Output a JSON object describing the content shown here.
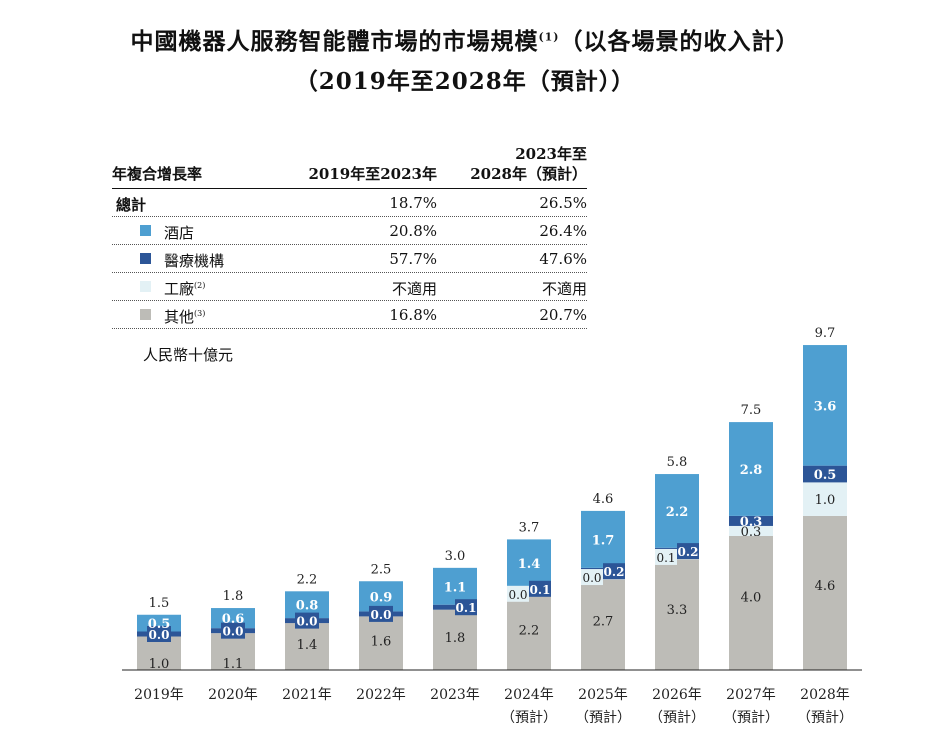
{
  "title": {
    "line1_main": "中國機器人服務智能體市場的市場規模",
    "line1_note": "(1)",
    "line1_tail": "（以各場景的收入計）",
    "line2": "（2019年至2028年（預計））"
  },
  "cagr_table": {
    "header_label": "年複合增長率",
    "col1_header": "2019年至2023年",
    "col2_header_line1": "2023年至",
    "col2_header_line2": "2028年（預計）",
    "rows": [
      {
        "label": "總計",
        "note": "",
        "v1": "18.7%",
        "v2": "26.5%"
      },
      {
        "label": "酒店",
        "note": "",
        "v1": "20.8%",
        "v2": "26.4%"
      },
      {
        "label": "醫療機構",
        "note": "",
        "v1": "57.7%",
        "v2": "47.6%"
      },
      {
        "label": "工廠",
        "note": "(2)",
        "v1": "不適用",
        "v2": "不適用"
      },
      {
        "label": "其他",
        "note": "(3)",
        "v1": "16.8%",
        "v2": "20.7%"
      }
    ]
  },
  "unit_label": "人民幣十億元",
  "colors": {
    "hotel": "#4e9fd1",
    "medical": "#2c5597",
    "factory": "#e3f1f5",
    "other": "#bdbcb7"
  },
  "chart_data": {
    "type": "bar",
    "stacked": true,
    "categories": [
      "2019年",
      "2020年",
      "2021年",
      "2022年",
      "2023年",
      "2024年",
      "2025年",
      "2026年",
      "2027年",
      "2028年"
    ],
    "category_sublabels": [
      "",
      "",
      "",
      "",
      "",
      "（預計）",
      "（預計）",
      "（預計）",
      "（預計）",
      "（預計）"
    ],
    "series": [
      {
        "name": "其他",
        "key": "other",
        "values": [
          1.0,
          1.1,
          1.4,
          1.6,
          1.8,
          2.2,
          2.7,
          3.3,
          4.0,
          4.6
        ],
        "labels": [
          "1.0",
          "1.1",
          "1.4",
          "1.6",
          "1.8",
          "2.2",
          "2.7",
          "3.3",
          "4.0",
          "4.6"
        ]
      },
      {
        "name": "工廠",
        "key": "factory",
        "values": [
          0.0,
          0.0,
          0.0,
          0.0,
          0.0,
          0.0,
          0.0,
          0.1,
          0.3,
          1.0
        ],
        "labels": [
          "",
          "",
          "",
          "",
          "",
          "0.0",
          "0.0",
          "0.1",
          "0.3",
          "1.0"
        ]
      },
      {
        "name": "醫療機構",
        "key": "medical",
        "values": [
          0.0,
          0.0,
          0.0,
          0.0,
          0.1,
          0.1,
          0.2,
          0.2,
          0.3,
          0.5
        ],
        "labels": [
          "0.0",
          "0.0",
          "0.0",
          "0.0",
          "0.1",
          "0.1",
          "0.2",
          "0.2",
          "0.3",
          "0.5"
        ]
      },
      {
        "name": "酒店",
        "key": "hotel",
        "values": [
          0.5,
          0.6,
          0.8,
          0.9,
          1.1,
          1.4,
          1.7,
          2.2,
          2.8,
          3.6
        ],
        "labels": [
          "0.5",
          "0.6",
          "0.8",
          "0.9",
          "1.1",
          "1.4",
          "1.7",
          "2.2",
          "2.8",
          "3.6"
        ]
      }
    ],
    "totals": [
      "1.5",
      "1.8",
      "2.2",
      "2.5",
      "3.0",
      "3.7",
      "4.6",
      "5.8",
      "7.5",
      "9.7"
    ],
    "ylim": [
      0,
      10
    ],
    "ylabel": "人民幣十億元"
  }
}
